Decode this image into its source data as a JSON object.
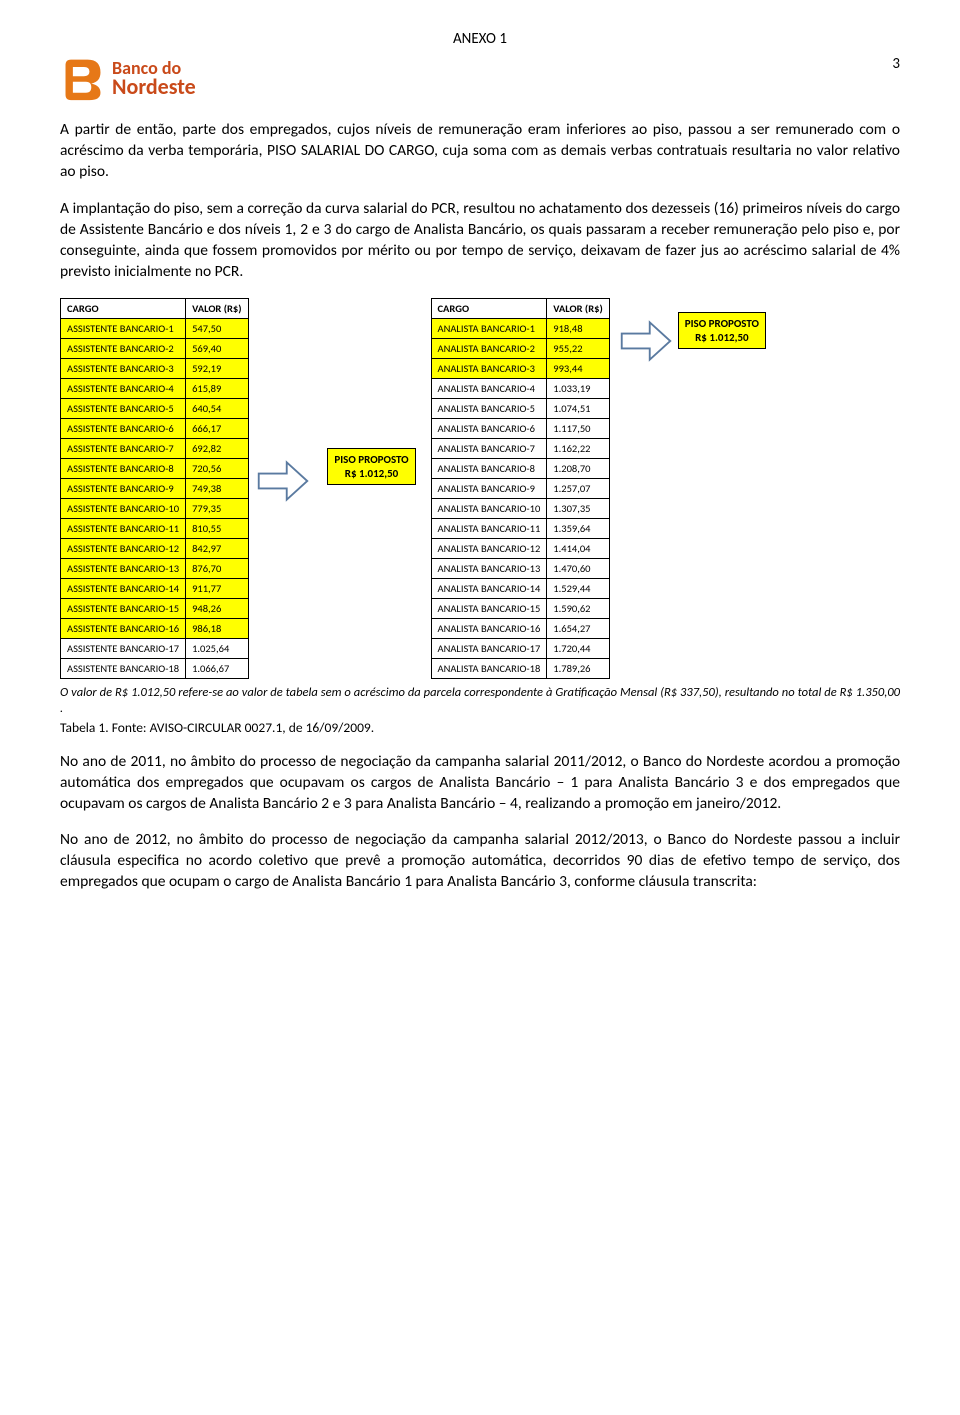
{
  "header": {
    "anexo": "ANEXO 1",
    "page_number": "3",
    "logo_line1": "Banco do",
    "logo_line2": "Nordeste",
    "logo_orange": "#e67817",
    "logo_red": "#c94a1a"
  },
  "paragraphs": {
    "p1": "A partir de então, parte dos empregados, cujos níveis de remuneração eram inferiores ao piso, passou a ser remunerado com o acréscimo da verba temporária, PISO SALARIAL DO CARGO, cuja soma com as demais verbas contratuais resultaria no valor relativo ao piso.",
    "p2": "A implantação do piso, sem a correção da curva salarial do PCR, resultou no achatamento dos dezesseis (16) primeiros níveis do cargo de Assistente Bancário e dos níveis 1, 2 e 3 do cargo de Analista Bancário, os quais passaram a receber remuneração pelo piso e, por conseguinte, ainda que fossem promovidos por mérito ou por tempo de serviço, deixavam de fazer jus ao acréscimo salarial de 4% previsto inicialmente no PCR.",
    "p3": "No ano de 2011, no âmbito do processo de negociação da campanha salarial 2011/2012, o Banco do Nordeste acordou a promoção automática dos empregados que ocupavam os cargos de Analista Bancário – 1 para Analista Bancário 3 e dos empregados que ocupavam os cargos de Analista Bancário 2 e 3 para Analista Bancário – 4, realizando a promoção em janeiro/2012.",
    "p4": "No ano de 2012, no âmbito do processo de negociação da campanha salarial 2012/2013, o Banco do Nordeste passou a incluir cláusula especifica no acordo coletivo que prevê a promoção automática, decorridos 90 dias de efetivo tempo de serviço, dos empregados que ocupam o cargo de Analista Bancário 1 para Analista Bancário 3, conforme cláusula transcrita:"
  },
  "table1": {
    "header_cargo": "CARGO",
    "header_valor": "VALOR (R$)",
    "highlight_until_index": 15,
    "rows": [
      {
        "cargo": "ASSISTENTE BANCARIO-1",
        "valor": "547,50"
      },
      {
        "cargo": "ASSISTENTE BANCARIO-2",
        "valor": "569,40"
      },
      {
        "cargo": "ASSISTENTE BANCARIO-3",
        "valor": "592,19"
      },
      {
        "cargo": "ASSISTENTE BANCARIO-4",
        "valor": "615,89"
      },
      {
        "cargo": "ASSISTENTE BANCARIO-5",
        "valor": "640,54"
      },
      {
        "cargo": "ASSISTENTE BANCARIO-6",
        "valor": "666,17"
      },
      {
        "cargo": "ASSISTENTE BANCARIO-7",
        "valor": "692,82"
      },
      {
        "cargo": "ASSISTENTE BANCARIO-8",
        "valor": "720,56"
      },
      {
        "cargo": "ASSISTENTE BANCARIO-9",
        "valor": "749,38"
      },
      {
        "cargo": "ASSISTENTE BANCARIO-10",
        "valor": "779,35"
      },
      {
        "cargo": "ASSISTENTE BANCARIO-11",
        "valor": "810,55"
      },
      {
        "cargo": "ASSISTENTE BANCARIO-12",
        "valor": "842,97"
      },
      {
        "cargo": "ASSISTENTE BANCARIO-13",
        "valor": "876,70"
      },
      {
        "cargo": "ASSISTENTE BANCARIO-14",
        "valor": "911,77"
      },
      {
        "cargo": "ASSISTENTE BANCARIO-15",
        "valor": "948,26"
      },
      {
        "cargo": "ASSISTENTE BANCARIO-16",
        "valor": "986,18"
      },
      {
        "cargo": "ASSISTENTE BANCARIO-17",
        "valor": "1.025,64"
      },
      {
        "cargo": "ASSISTENTE BANCARIO-18",
        "valor": "1.066,67"
      }
    ]
  },
  "table2": {
    "header_cargo": "CARGO",
    "header_valor": "VALOR (R$)",
    "highlight_until_index": 2,
    "rows": [
      {
        "cargo": "ANALISTA BANCARIO-1",
        "valor": "918,48"
      },
      {
        "cargo": "ANALISTA BANCARIO-2",
        "valor": "955,22"
      },
      {
        "cargo": "ANALISTA BANCARIO-3",
        "valor": "993,44"
      },
      {
        "cargo": "ANALISTA BANCARIO-4",
        "valor": "1.033,19"
      },
      {
        "cargo": "ANALISTA BANCARIO-5",
        "valor": "1.074,51"
      },
      {
        "cargo": "ANALISTA BANCARIO-6",
        "valor": "1.117,50"
      },
      {
        "cargo": "ANALISTA BANCARIO-7",
        "valor": "1.162,22"
      },
      {
        "cargo": "ANALISTA BANCARIO-8",
        "valor": "1.208,70"
      },
      {
        "cargo": "ANALISTA BANCARIO-9",
        "valor": "1.257,07"
      },
      {
        "cargo": "ANALISTA BANCARIO-10",
        "valor": "1.307,35"
      },
      {
        "cargo": "ANALISTA BANCARIO-11",
        "valor": "1.359,64"
      },
      {
        "cargo": "ANALISTA BANCARIO-12",
        "valor": "1.414,04"
      },
      {
        "cargo": "ANALISTA BANCARIO-13",
        "valor": "1.470,60"
      },
      {
        "cargo": "ANALISTA BANCARIO-14",
        "valor": "1.529,44"
      },
      {
        "cargo": "ANALISTA BANCARIO-15",
        "valor": "1.590,62"
      },
      {
        "cargo": "ANALISTA BANCARIO-16",
        "valor": "1.654,27"
      },
      {
        "cargo": "ANALISTA BANCARIO-17",
        "valor": "1.720,44"
      },
      {
        "cargo": "ANALISTA BANCARIO-18",
        "valor": "1.789,26"
      }
    ]
  },
  "piso": {
    "label1": "PISO PROPOSTO",
    "label2": "R$ 1.012,50",
    "box_bg": "#ffff00",
    "arrow_stroke": "#5a7aa0",
    "arrow_fill": "#ffffff"
  },
  "footnote": "O valor de R$ 1.012,50 refere-se ao valor de tabela sem o acréscimo da parcela correspondente à Gratificação Mensal (R$ 337,50), resultando no total de R$ 1.350,00 .",
  "table_caption": "Tabela 1. Fonte: AVISO-CIRCULAR 0027.1, de 16/09/2009.",
  "colors": {
    "highlight": "#ffff00",
    "text": "#000000",
    "border": "#000000"
  }
}
